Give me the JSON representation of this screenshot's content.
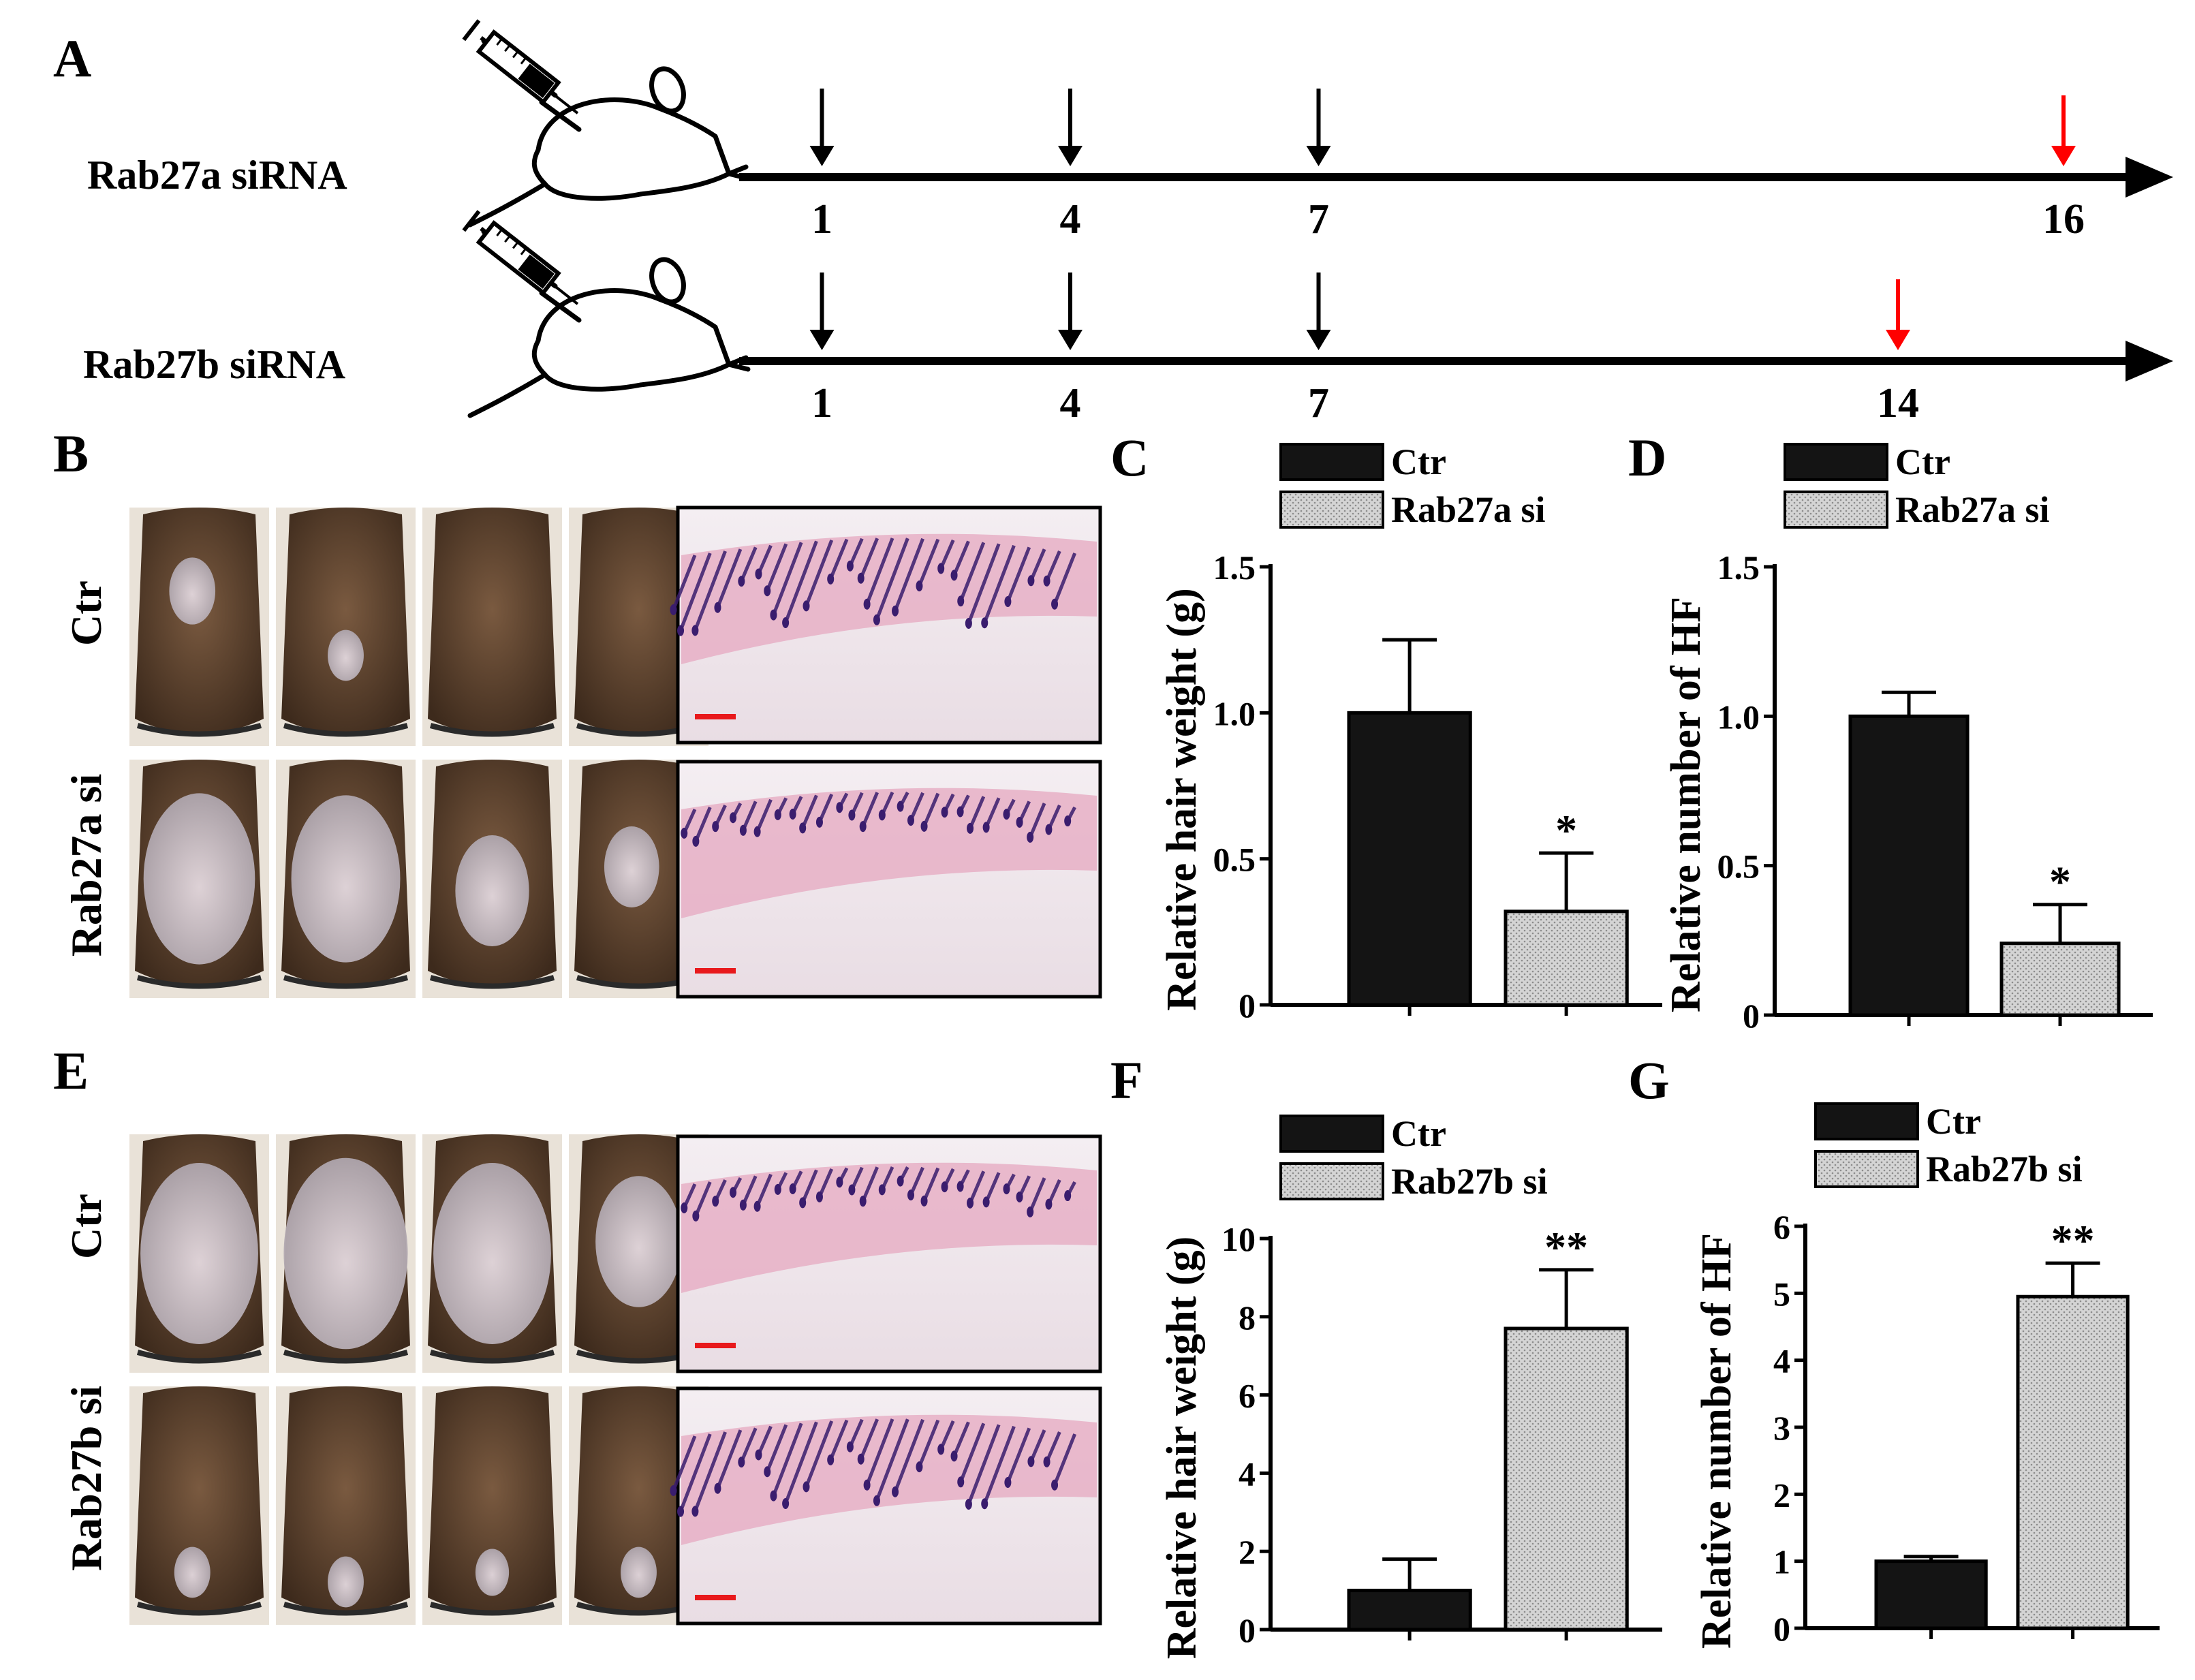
{
  "panel_letters": [
    "A",
    "B",
    "C",
    "D",
    "E",
    "F",
    "G"
  ],
  "timeline": {
    "rows": [
      {
        "label": "Rab27a siRNA",
        "injection_days": [
          1,
          4,
          7
        ],
        "harvest_day": 16
      },
      {
        "label": "Rab27b siRNA",
        "injection_days": [
          1,
          4,
          7
        ],
        "harvest_day": 14
      }
    ],
    "injection_arrow_color": "#000000",
    "harvest_arrow_color": "#ff0000"
  },
  "photo_rows": {
    "B": [
      "Ctr",
      "Rab27a si"
    ],
    "E": [
      "Ctr",
      "Rab27b si"
    ]
  },
  "colors": {
    "ctr_bar": "#141414",
    "si_bar": "#cfcfcf",
    "scale_bar": "#e8191c",
    "fur_dark": "#4a3424",
    "fur_light": "#7a5a40",
    "bald_skin": "#cfc6cc",
    "histo_bg": "#f2e8ea",
    "dermis_pink": "#e6a8c0",
    "follicle_purple": "#3a1d6e"
  },
  "chart_data": [
    {
      "id": "C",
      "type": "bar",
      "ylabel": "Relative hair weight (g)",
      "xlabel": "",
      "ylim": [
        0,
        1.5
      ],
      "yticks": [
        "0",
        "0.5",
        "1.0",
        "1.5"
      ],
      "series": [
        {
          "name": "Ctr",
          "value": 1.0,
          "error": 0.25,
          "sig": ""
        },
        {
          "name": "Rab27a si",
          "value": 0.32,
          "error": 0.2,
          "sig": "*"
        }
      ]
    },
    {
      "id": "D",
      "type": "bar",
      "ylabel": "Relative number of HF",
      "xlabel": "",
      "ylim": [
        0,
        1.5
      ],
      "yticks": [
        "0",
        "0.5",
        "1.0",
        "1.5"
      ],
      "series": [
        {
          "name": "Ctr",
          "value": 1.0,
          "error": 0.08,
          "sig": ""
        },
        {
          "name": "Rab27a si",
          "value": 0.24,
          "error": 0.13,
          "sig": "*"
        }
      ]
    },
    {
      "id": "F",
      "type": "bar",
      "ylabel": "Relative hair weight (g)",
      "xlabel": "",
      "ylim": [
        0,
        10
      ],
      "yticks": [
        "0",
        "2",
        "4",
        "6",
        "8",
        "10"
      ],
      "series": [
        {
          "name": "Ctr",
          "value": 1.0,
          "error": 0.8,
          "sig": ""
        },
        {
          "name": "Rab27b si",
          "value": 7.7,
          "error": 1.5,
          "sig": "**"
        }
      ]
    },
    {
      "id": "G",
      "type": "bar",
      "ylabel": "Relative number of HF",
      "xlabel": "",
      "ylim": [
        0,
        6
      ],
      "yticks": [
        "0",
        "1",
        "2",
        "3",
        "4",
        "5",
        "6"
      ],
      "series": [
        {
          "name": "Ctr",
          "value": 1.0,
          "error": 0.07,
          "sig": ""
        },
        {
          "name": "Rab27b si",
          "value": 4.95,
          "error": 0.5,
          "sig": "**"
        }
      ]
    }
  ]
}
